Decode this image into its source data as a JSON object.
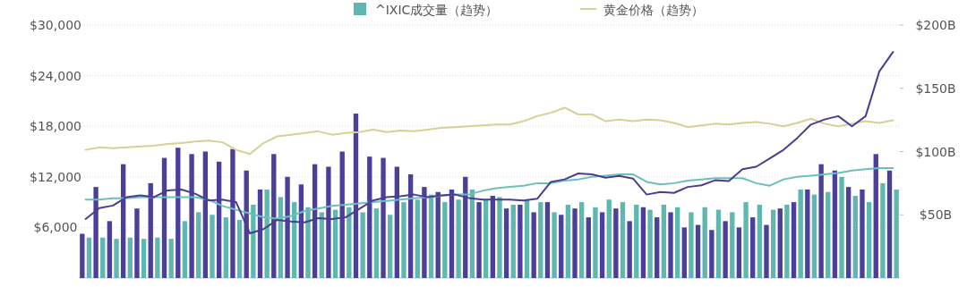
{
  "chart_data": {
    "type": "bar",
    "categories": [
      null,
      null,
      null,
      null,
      null,
      null,
      null,
      null,
      null,
      null,
      null,
      null,
      null,
      null,
      null,
      null,
      null,
      null,
      null,
      null,
      null,
      null,
      null,
      null,
      null,
      null,
      null,
      null,
      null,
      null,
      null,
      null,
      null,
      null,
      null,
      null,
      null,
      null,
      null,
      null,
      null,
      null,
      null,
      null,
      null,
      null,
      null,
      null,
      null,
      null,
      null,
      null,
      null,
      null,
      null,
      null,
      null,
      null,
      null,
      null
    ],
    "series": [
      {
        "axis": "y2",
        "color": "#4b3f9a",
        "values": [
          35,
          72,
          45,
          90,
          55,
          75,
          95,
          103,
          98,
          100,
          92,
          102,
          85,
          70,
          98,
          80,
          74,
          90,
          88,
          100,
          130,
          96,
          95,
          88,
          82,
          72,
          68,
          70,
          80,
          60,
          65,
          55,
          58,
          52,
          60,
          50,
          55,
          48,
          52,
          55,
          45,
          56,
          48,
          52,
          40,
          42,
          38,
          45,
          40,
          48,
          42,
          55,
          60,
          70,
          90,
          85,
          72,
          70,
          98,
          85
        ]
      },
      {
        "axis": "y2",
        "name": "^IXIC成交量（趋势）",
        "color": "#5fb7b2",
        "values": [
          32,
          32,
          31,
          32,
          31,
          32,
          31,
          45,
          52,
          50,
          48,
          46,
          58,
          70,
          64,
          60,
          56,
          52,
          54,
          56,
          52,
          55,
          50,
          60,
          62,
          66,
          60,
          62,
          70,
          62,
          64,
          58,
          62,
          60,
          52,
          58,
          60,
          56,
          62,
          60,
          58,
          54,
          58,
          56,
          52,
          56,
          54,
          52,
          60,
          58,
          54,
          58,
          70,
          66,
          68,
          80,
          65,
          60,
          75,
          70
        ]
      },
      {
        "type": "line",
        "axis": "y2",
        "color": "#6bbfbd",
        "values": [
          62,
          62,
          63,
          63,
          64,
          64,
          64,
          64,
          64,
          62,
          57,
          54,
          51,
          48,
          47,
          49,
          53,
          55,
          57,
          58,
          59,
          60,
          61,
          62,
          63,
          64,
          65,
          66,
          66,
          69,
          71,
          72,
          73,
          75,
          75,
          77,
          78,
          80,
          81,
          82,
          82,
          76,
          74,
          75,
          77,
          78,
          79,
          79,
          79,
          75,
          73,
          78,
          80,
          81,
          82,
          83,
          85,
          86,
          87,
          87
        ]
      },
      {
        "type": "line",
        "axis": "y",
        "name": "黄金价格（趋势）",
        "color": "#d8cf94",
        "values": [
          15200,
          15500,
          15400,
          15500,
          15600,
          15700,
          15900,
          16000,
          16200,
          16300,
          16100,
          15200,
          14700,
          16000,
          16800,
          17000,
          17200,
          17400,
          17000,
          17200,
          17300,
          17600,
          17300,
          17500,
          17400,
          17600,
          17800,
          17900,
          18000,
          18100,
          18200,
          18200,
          18600,
          19200,
          19600,
          20200,
          19400,
          19400,
          18600,
          18800,
          18600,
          18800,
          18700,
          18400,
          17900,
          18100,
          18300,
          18200,
          18400,
          18500,
          18300,
          18000,
          18400,
          18900,
          18300,
          18000,
          18300,
          18600,
          18400,
          18700
        ]
      },
      {
        "type": "line",
        "axis": "y",
        "color": "#4a3d8f",
        "values": [
          7000,
          8300,
          8600,
          9600,
          9800,
          9600,
          10400,
          10500,
          10000,
          9200,
          9300,
          9000,
          5300,
          5800,
          6900,
          6700,
          6600,
          7100,
          7000,
          7200,
          8200,
          9200,
          9600,
          9700,
          9900,
          9600,
          9800,
          9900,
          9500,
          9300,
          9300,
          9300,
          9200,
          9400,
          11400,
          11700,
          12400,
          12300,
          11900,
          12100,
          11800,
          9900,
          10200,
          10100,
          10800,
          11000,
          11600,
          11500,
          12900,
          13200,
          14200,
          15200,
          16600,
          18200,
          18800,
          19200,
          18000,
          19200,
          24500,
          26800
        ]
      }
    ],
    "ylim": [
      0,
      30000
    ],
    "yticks": [
      {
        "value": 6000,
        "label": "$6,000"
      },
      {
        "value": 12000,
        "label": "$12,000"
      },
      {
        "value": 18000,
        "label": "$18,000"
      },
      {
        "value": 24000,
        "label": "$24,000"
      },
      {
        "value": 30000,
        "label": "$30,000"
      }
    ],
    "y2lim": [
      0,
      200
    ],
    "y2ticks": [
      {
        "value": 50,
        "label": "$50B"
      },
      {
        "value": 100,
        "label": "$100B"
      },
      {
        "value": 150,
        "label": "$150B"
      },
      {
        "value": 200,
        "label": "$200B"
      }
    ],
    "grid": "y",
    "legend": "top"
  }
}
